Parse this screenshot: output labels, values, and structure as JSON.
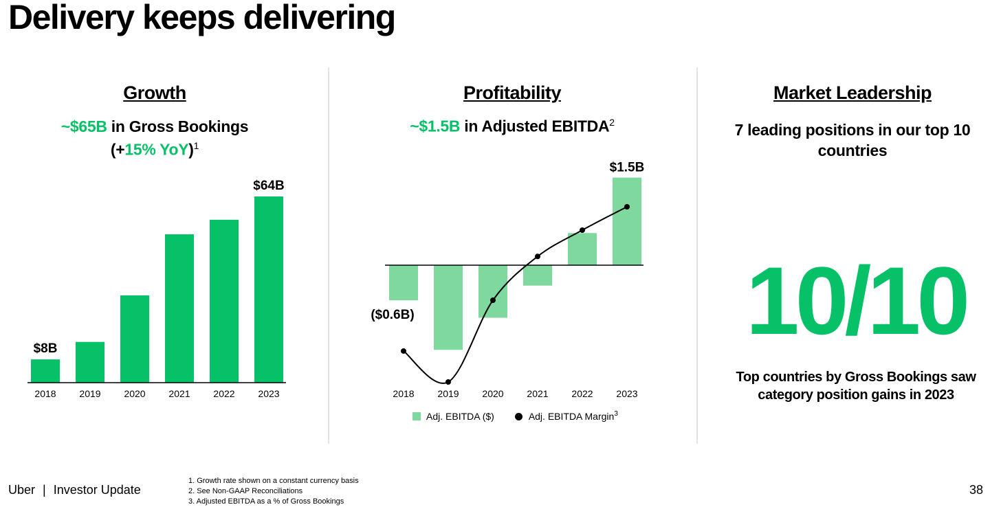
{
  "slide": {
    "title": "Delivery keeps delivering",
    "page_number": "38"
  },
  "growth": {
    "title": "Growth",
    "headline_value": "~$65B",
    "headline_text": " in Gross Bookings",
    "yoy_open": "(+",
    "yoy_value": "15% YoY",
    "yoy_close": ")",
    "yoy_note": "1"
  },
  "profitability": {
    "title": "Profitability",
    "headline_value": "~$1.5B",
    "headline_text": " in Adjusted EBITDA",
    "headline_note": "2",
    "legend_bar": "Adj. EBITDA ($)",
    "legend_line": "Adj. EBITDA Margin",
    "legend_line_note": "3"
  },
  "leadership": {
    "title": "Market Leadership",
    "headline": "7 leading positions in our top 10 countries",
    "big_stat": "10/10",
    "caption": "Top countries by Gross Bookings saw category position gains in 2023"
  },
  "footer": {
    "brand": "Uber",
    "separator": "|",
    "section": "Investor Update",
    "notes": [
      "1. Growth rate shown on a constant currency basis",
      "2. See Non-GAAP Reconciliations",
      "3. Adjusted EBITDA as a % of Gross Bookings"
    ]
  },
  "colors": {
    "brand_green": "#06c167",
    "light_green": "#7fd89e",
    "divider": "#e3e3e3"
  },
  "chart_data": [
    {
      "type": "bar",
      "title": "",
      "categories": [
        "2018",
        "2019",
        "2020",
        "2021",
        "2022",
        "2023"
      ],
      "series": [
        {
          "values": [
            8,
            14,
            30,
            51,
            56,
            64
          ]
        }
      ],
      "data_labels": [
        {
          "category": "2018",
          "text": "$8B"
        },
        {
          "category": "2023",
          "text": "$64B"
        }
      ],
      "ylabel": "",
      "ylim": [
        0,
        64
      ],
      "grid": false,
      "color": "#06c167"
    },
    {
      "type": "bar",
      "title": "",
      "categories": [
        "2018",
        "2019",
        "2020",
        "2021",
        "2022",
        "2023"
      ],
      "series": [
        {
          "name": "Adj. EBITDA ($)",
          "type": "bar",
          "values": [
            -0.6,
            -1.45,
            -0.9,
            -0.35,
            0.55,
            1.5
          ]
        },
        {
          "name": "Adj. EBITDA Margin",
          "type": "line",
          "values": [
            -1.47,
            -2.0,
            -0.6,
            0.15,
            0.6,
            1.0
          ]
        }
      ],
      "data_labels": [
        {
          "category": "2018",
          "text": "($0.6B)"
        },
        {
          "category": "2023",
          "text": "$1.5B"
        }
      ],
      "ylim": [
        -2.0,
        1.5
      ],
      "grid": false,
      "legend_position": "bottom"
    }
  ]
}
